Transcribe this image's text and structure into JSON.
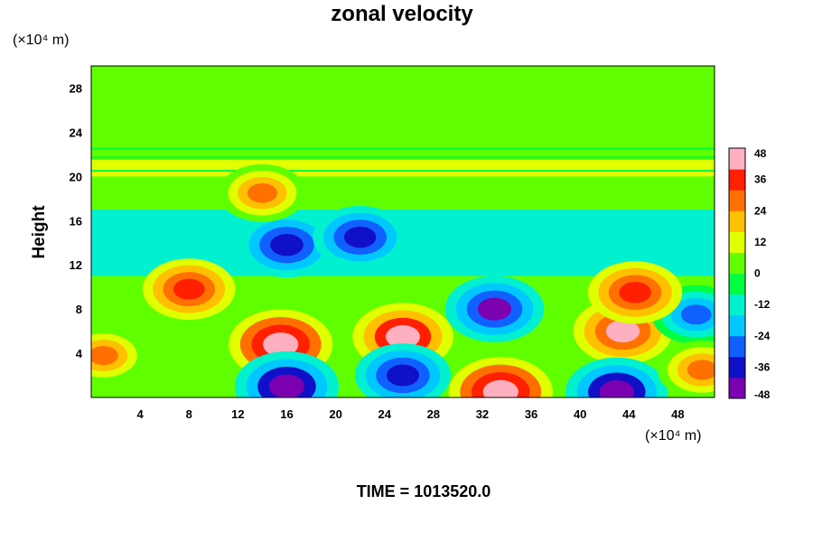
{
  "chart_data": {
    "type": "heatmap",
    "title": "zonal velocity",
    "ylabel": "Height",
    "xlabel": "",
    "x_unit_label": "(×10⁴ m)",
    "y_unit_label": "(×10⁴ m)",
    "xlim": [
      0,
      51
    ],
    "ylim": [
      0,
      30
    ],
    "x_ticks": [
      "4",
      "8",
      "12",
      "16",
      "20",
      "24",
      "28",
      "32",
      "36",
      "40",
      "44",
      "48"
    ],
    "y_ticks": [
      "4",
      "8",
      "12",
      "16",
      "20",
      "24",
      "28"
    ],
    "colorbar": {
      "min": -48,
      "max": 48,
      "ticks": [
        "48",
        "36",
        "24",
        "12",
        "0",
        "-12",
        "-24",
        "-36",
        "-48"
      ],
      "colormap": [
        "#7a00b0",
        "#1010c8",
        "#1060ff",
        "#00c8ff",
        "#00f0d0",
        "#00ff40",
        "#60ff00",
        "#e0ff00",
        "#ffc000",
        "#ff7000",
        "#ff2000",
        "#ffb0c0"
      ]
    },
    "features": [
      {
        "x": 15.5,
        "y": 4.8,
        "value": 48
      },
      {
        "x": 25.5,
        "y": 5.5,
        "value": 44
      },
      {
        "x": 43.5,
        "y": 6.0,
        "value": 42
      },
      {
        "x": 33.5,
        "y": 0.5,
        "value": 48
      },
      {
        "x": 16.0,
        "y": 1.0,
        "value": -48
      },
      {
        "x": 33.0,
        "y": 8.0,
        "value": -42
      },
      {
        "x": 25.5,
        "y": 2.0,
        "value": -38
      },
      {
        "x": 43.0,
        "y": 0.5,
        "value": -46
      },
      {
        "x": 16.0,
        "y": 13.8,
        "value": -40
      },
      {
        "x": 22.0,
        "y": 14.5,
        "value": -36
      },
      {
        "x": 8.0,
        "y": 9.8,
        "value": 34
      },
      {
        "x": 14.0,
        "y": 18.5,
        "value": 28
      },
      {
        "x": 49.5,
        "y": 7.5,
        "value": -30
      },
      {
        "x": 50.0,
        "y": 2.5,
        "value": 30
      },
      {
        "x": 1.0,
        "y": 3.8,
        "value": 26
      },
      {
        "x": 44.5,
        "y": 9.5,
        "value": 36
      }
    ]
  },
  "footer": {
    "time_label": "TIME = 1013520.0"
  }
}
